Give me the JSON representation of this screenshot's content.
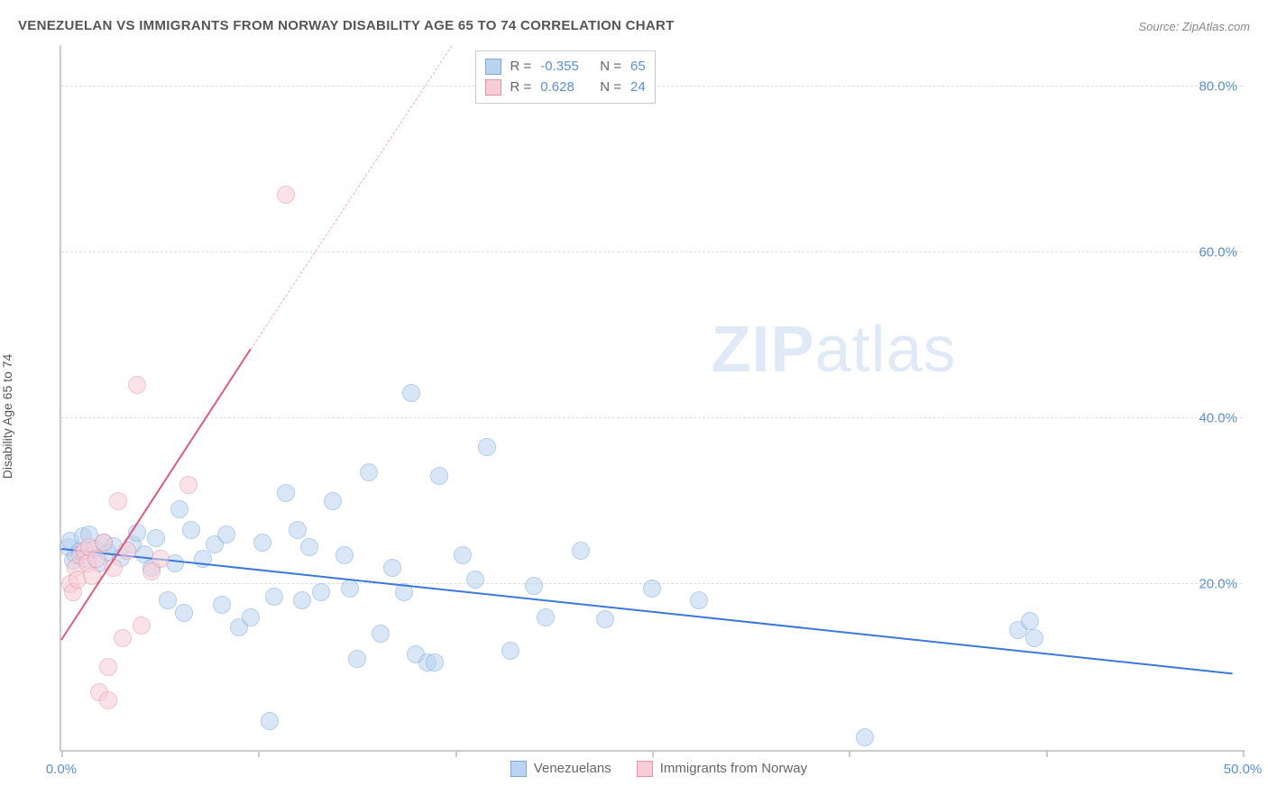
{
  "title": "VENEZUELAN VS IMMIGRANTS FROM NORWAY DISABILITY AGE 65 TO 74 CORRELATION CHART",
  "source": "Source: ZipAtlas.com",
  "y_axis_label": "Disability Age 65 to 74",
  "watermark": {
    "bold": "ZIP",
    "rest": "atlas"
  },
  "chart": {
    "type": "scatter",
    "xlim": [
      0,
      50
    ],
    "ylim": [
      0,
      85
    ],
    "x_ticks": [
      0,
      8.33,
      16.67,
      25,
      33.33,
      41.67,
      50
    ],
    "x_tick_labels": {
      "0": "0.0%",
      "50": "50.0%"
    },
    "y_ticks": [
      20,
      40,
      60,
      80
    ],
    "y_tick_labels": {
      "20": "20.0%",
      "40": "40.0%",
      "60": "60.0%",
      "80": "80.0%"
    },
    "background_color": "#ffffff",
    "grid_color": "#dddddd",
    "axis_color": "#cccccc",
    "tick_label_color": "#5b8fd6",
    "tick_label_fontsize": 15,
    "axis_label_fontsize": 14,
    "title_fontsize": 15,
    "title_color": "#555555",
    "marker_radius": 10,
    "marker_stroke_width": 1.5
  },
  "series": [
    {
      "name": "Venezuelans",
      "label": "Venezuelans",
      "fill_color": "#b9d3f0",
      "stroke_color": "#7ba8dd",
      "fill_opacity": 0.55,
      "R": "-0.355",
      "N": "65",
      "trend": {
        "x1": 0,
        "y1": 24.5,
        "x2": 49.5,
        "y2": 9.5,
        "color": "#3b78d8",
        "width": 2,
        "dash": false
      },
      "points": [
        [
          0.3,
          24.5
        ],
        [
          0.4,
          25.2
        ],
        [
          0.5,
          22.8
        ],
        [
          0.6,
          23.5
        ],
        [
          0.8,
          24.0
        ],
        [
          0.9,
          25.8
        ],
        [
          1.0,
          23.0
        ],
        [
          1.2,
          26.0
        ],
        [
          1.4,
          24.2
        ],
        [
          1.6,
          22.5
        ],
        [
          1.8,
          25.0
        ],
        [
          2.0,
          23.8
        ],
        [
          2.2,
          24.6
        ],
        [
          2.5,
          23.2
        ],
        [
          3.0,
          24.8
        ],
        [
          3.2,
          26.2
        ],
        [
          3.5,
          23.6
        ],
        [
          3.8,
          22.0
        ],
        [
          4.0,
          25.5
        ],
        [
          4.5,
          18.0
        ],
        [
          4.8,
          22.5
        ],
        [
          5.0,
          29.0
        ],
        [
          5.2,
          16.5
        ],
        [
          5.5,
          26.5
        ],
        [
          6.0,
          23.0
        ],
        [
          6.5,
          24.8
        ],
        [
          6.8,
          17.5
        ],
        [
          7.0,
          26.0
        ],
        [
          7.5,
          14.8
        ],
        [
          8.0,
          16.0
        ],
        [
          8.5,
          25.0
        ],
        [
          8.8,
          3.5
        ],
        [
          9.0,
          18.5
        ],
        [
          9.5,
          31.0
        ],
        [
          10.0,
          26.5
        ],
        [
          10.2,
          18.0
        ],
        [
          10.5,
          24.5
        ],
        [
          11.0,
          19.0
        ],
        [
          11.5,
          30.0
        ],
        [
          12.0,
          23.5
        ],
        [
          12.5,
          11.0
        ],
        [
          13.0,
          33.5
        ],
        [
          13.5,
          14.0
        ],
        [
          14.0,
          22.0
        ],
        [
          14.5,
          19.0
        ],
        [
          15.0,
          11.5
        ],
        [
          15.5,
          10.5
        ],
        [
          15.8,
          10.5
        ],
        [
          16.0,
          33.0
        ],
        [
          17.0,
          23.5
        ],
        [
          17.5,
          20.5
        ],
        [
          18.0,
          36.5
        ],
        [
          19.0,
          12.0
        ],
        [
          20.5,
          16.0
        ],
        [
          22.0,
          24.0
        ],
        [
          25.0,
          19.5
        ],
        [
          23.0,
          15.8
        ],
        [
          14.8,
          43.0
        ],
        [
          27.0,
          18.0
        ],
        [
          34.0,
          1.5
        ],
        [
          40.5,
          14.5
        ],
        [
          41.2,
          13.5
        ],
        [
          41.0,
          15.5
        ],
        [
          12.2,
          19.5
        ],
        [
          20.0,
          19.8
        ]
      ]
    },
    {
      "name": "Immigrants from Norway",
      "label": "Immigrants from Norway",
      "fill_color": "#f7cdd6",
      "stroke_color": "#e892a5",
      "fill_opacity": 0.55,
      "R": "0.628",
      "N": "24",
      "trend": {
        "x1": 0,
        "y1": 13.5,
        "x2": 8.0,
        "y2": 48.5,
        "color": "#e05a7a",
        "width": 2,
        "dash": false
      },
      "trend_extend": {
        "x1": 8.0,
        "y1": 48.5,
        "x2": 16.5,
        "y2": 85.0,
        "color": "#f0b0bd",
        "width": 1.5,
        "dash": true
      },
      "points": [
        [
          0.4,
          20.0
        ],
        [
          0.5,
          19.0
        ],
        [
          0.6,
          22.0
        ],
        [
          0.7,
          20.5
        ],
        [
          0.8,
          23.5
        ],
        [
          1.0,
          24.0
        ],
        [
          1.1,
          22.5
        ],
        [
          1.2,
          24.5
        ],
        [
          1.3,
          21.0
        ],
        [
          1.5,
          23.0
        ],
        [
          1.6,
          7.0
        ],
        [
          1.8,
          25.0
        ],
        [
          2.0,
          10.0
        ],
        [
          2.0,
          6.0
        ],
        [
          2.2,
          22.0
        ],
        [
          2.4,
          30.0
        ],
        [
          2.6,
          13.5
        ],
        [
          2.8,
          24.0
        ],
        [
          3.2,
          44.0
        ],
        [
          3.4,
          15.0
        ],
        [
          3.8,
          21.5
        ],
        [
          4.2,
          23.0
        ],
        [
          5.4,
          32.0
        ],
        [
          9.5,
          67.0
        ]
      ]
    }
  ],
  "legend_top": {
    "R_label": "R =",
    "N_label": "N ="
  },
  "legend_bottom": {
    "items": [
      "Venezuelans",
      "Immigrants from Norway"
    ]
  }
}
